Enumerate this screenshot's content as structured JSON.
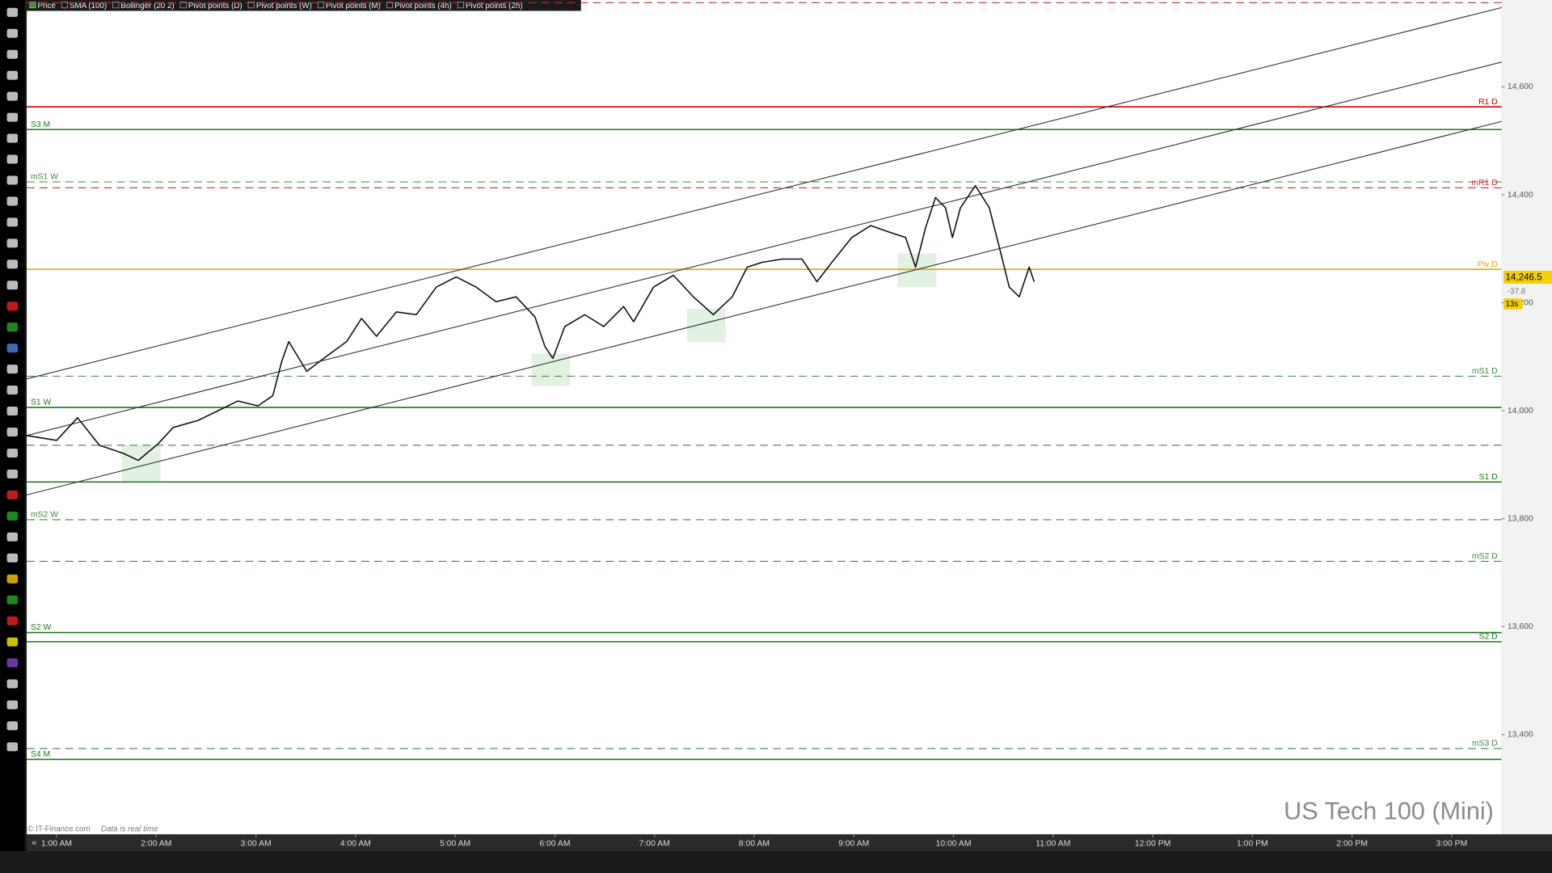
{
  "chart_data": {
    "type": "line",
    "title": "US Tech 100 (Mini)",
    "legend": [
      "Price",
      "SMA (100)",
      "Bollinger (20 2)",
      "Pivot points (D)",
      "Pivot points (W)",
      "Pivot points (M)",
      "Pivot points (4h)",
      "Pivot points (2h)"
    ],
    "x": [
      0.7,
      1.0,
      1.21,
      1.43,
      1.67,
      1.82,
      2.02,
      2.17,
      2.42,
      2.62,
      2.82,
      3.02,
      3.17,
      3.26,
      3.33,
      3.51,
      3.71,
      3.91,
      4.06,
      4.21,
      4.41,
      4.61,
      4.81,
      5.01,
      5.21,
      5.41,
      5.61,
      5.8,
      5.9,
      5.98,
      6.1,
      6.3,
      6.49,
      6.69,
      6.79,
      6.99,
      7.19,
      7.39,
      7.59,
      7.78,
      7.93,
      8.08,
      8.28,
      8.48,
      8.63,
      8.78,
      8.98,
      9.17,
      9.37,
      9.52,
      9.62,
      9.72,
      9.82,
      9.92,
      9.99,
      10.07,
      10.22,
      10.36,
      10.46,
      10.56,
      10.66,
      10.76,
      10.81
    ],
    "series": [
      {
        "name": "Price",
        "color": "#111111",
        "values": [
          13954,
          13945,
          13987,
          13936,
          13921,
          13908,
          13939,
          13969,
          13982,
          14000,
          14018,
          14009,
          14028,
          14092,
          14128,
          14073,
          14101,
          14128,
          14171,
          14138,
          14183,
          14178,
          14229,
          14248,
          14229,
          14202,
          14211,
          14174,
          14119,
          14097,
          14156,
          14178,
          14156,
          14193,
          14165,
          14229,
          14251,
          14211,
          14178,
          14211,
          14266,
          14275,
          14281,
          14281,
          14239,
          14275,
          14321,
          14343,
          14330,
          14321,
          14266,
          14339,
          14395,
          14376,
          14321,
          14376,
          14417,
          14376,
          14303,
          14229,
          14211,
          14266,
          14239
        ]
      }
    ],
    "xlim": [
      0.7,
      15.5
    ],
    "xticks": [
      {
        "value": 1,
        "label": "1:00 AM"
      },
      {
        "value": 2,
        "label": "2:00 AM"
      },
      {
        "value": 3,
        "label": "3:00 AM"
      },
      {
        "value": 4,
        "label": "4:00 AM"
      },
      {
        "value": 5,
        "label": "5:00 AM"
      },
      {
        "value": 6,
        "label": "6:00 AM"
      },
      {
        "value": 7,
        "label": "7:00 AM"
      },
      {
        "value": 8,
        "label": "8:00 AM"
      },
      {
        "value": 9,
        "label": "9:00 AM"
      },
      {
        "value": 10,
        "label": "10:00 AM"
      },
      {
        "value": 11,
        "label": "11:00 AM"
      },
      {
        "value": 12,
        "label": "12:00 PM"
      },
      {
        "value": 13,
        "label": "1:00 PM"
      },
      {
        "value": 14,
        "label": "2:00 PM"
      },
      {
        "value": 15,
        "label": "3:00 PM"
      }
    ],
    "ylim": [
      13215,
      14761
    ],
    "yticks": [
      {
        "value": 13400,
        "label": "13,400"
      },
      {
        "value": 13600,
        "label": "13,600"
      },
      {
        "value": 13800,
        "label": "13,800"
      },
      {
        "value": 14000,
        "label": "14,000"
      },
      {
        "value": 14200,
        "label": "14,200"
      },
      {
        "value": 14400,
        "label": "14,400"
      },
      {
        "value": 14600,
        "label": "14,600"
      }
    ],
    "levels": [
      {
        "value": 14756,
        "color": "#c03030",
        "dashed": true
      },
      {
        "label": "R1 D",
        "value": 14563,
        "color": "#cc0000",
        "dashed": false,
        "side": "right"
      },
      {
        "label": "S3 M",
        "value": 14521,
        "color": "#1a7a1a",
        "dashed": false,
        "side": "left"
      },
      {
        "label": "mS1 W",
        "value": 14424,
        "color": "#3a8a3a",
        "dashed": true,
        "side": "left"
      },
      {
        "label": "mR1 D",
        "value": 14413,
        "color": "#c03030",
        "dashed": true,
        "side": "right"
      },
      {
        "label": "Piv D",
        "value": 14262,
        "color": "#f0a000",
        "dashed": false,
        "side": "right"
      },
      {
        "label": "mS1 D",
        "value": 14064,
        "color": "#3a8a3a",
        "dashed": true,
        "side": "right"
      },
      {
        "label": "S1 W",
        "value": 14006,
        "color": "#1a7a1a",
        "dashed": false,
        "side": "left"
      },
      {
        "value": 13936,
        "color": "#3a8a3a",
        "dashed": true
      },
      {
        "label": "S1 D",
        "value": 13868,
        "color": "#1a7a1a",
        "dashed": false,
        "side": "right"
      },
      {
        "label": "mS2 W",
        "value": 13798,
        "color": "#3a8a3a",
        "dashed": true,
        "side": "left"
      },
      {
        "label": "mS2 D",
        "value": 13721,
        "color": "#3a8a3a",
        "dashed": true,
        "side": "right"
      },
      {
        "label": "S2 W",
        "value": 13589,
        "color": "#1a7a1a",
        "dashed": false,
        "side": "left"
      },
      {
        "label": "S2 D",
        "value": 13572,
        "color": "#1a7a1a",
        "dashed": false,
        "side": "right"
      },
      {
        "label": "mS3 D",
        "value": 13374,
        "color": "#3a8a3a",
        "dashed": true,
        "side": "right"
      },
      {
        "label": "S4 M",
        "value": 13354,
        "color": "#1a7a1a",
        "dashed": false,
        "side": "left"
      }
    ],
    "trendlines": [
      {
        "x": [
          0.7,
          15.5
        ],
        "y": [
          14059,
          14747
        ]
      },
      {
        "x": [
          0.7,
          15.5
        ],
        "y": [
          13954,
          14646
        ]
      },
      {
        "x": [
          0.7,
          15.5
        ],
        "y": [
          13844,
          14536
        ]
      }
    ],
    "zones": [
      {
        "x": [
          1.655,
          2.043
        ],
        "y": [
          13868,
          13936
        ]
      },
      {
        "x": [
          5.767,
          6.154
        ],
        "y": [
          14046,
          14106
        ]
      },
      {
        "x": [
          7.326,
          7.713
        ],
        "y": [
          14127,
          14189
        ]
      },
      {
        "x": [
          9.44,
          9.83
        ],
        "y": [
          14229,
          14292
        ]
      }
    ],
    "last_price": {
      "value": 14246.5,
      "label": "14,246.5",
      "change": -37.8,
      "timer": "13s"
    },
    "footer": {
      "source": "© IT-Finance.com",
      "note": "Data is real time"
    }
  }
}
